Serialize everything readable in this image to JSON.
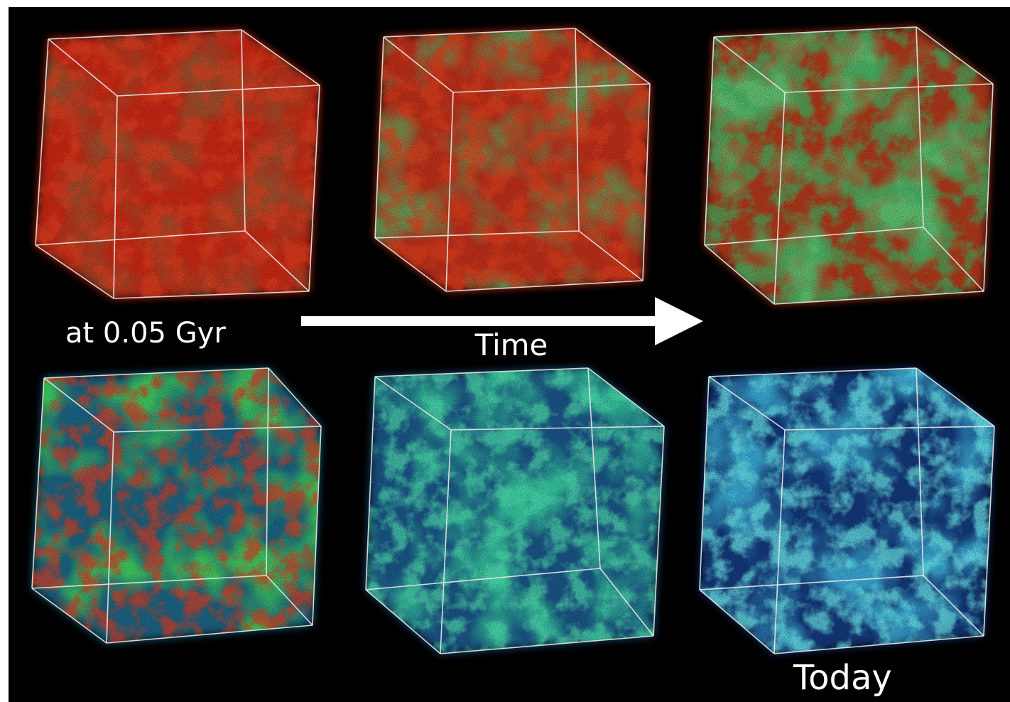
{
  "labels": {
    "start": "at 0.05 Gyr",
    "arrow": "Time",
    "end": "Today"
  }
}
